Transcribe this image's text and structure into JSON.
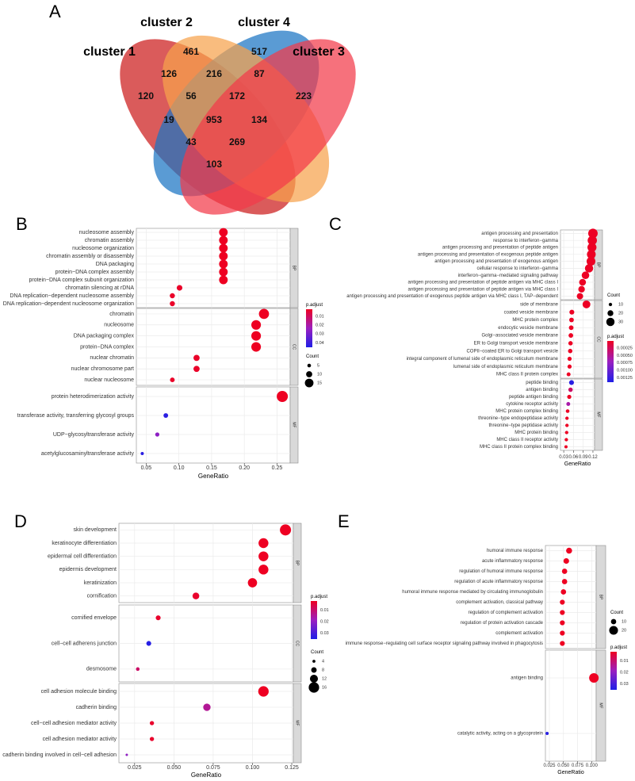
{
  "panel_letters": [
    "A",
    "B",
    "C",
    "D",
    "E"
  ],
  "colors": {
    "venn_c1": "#cc1c1c",
    "venn_c2": "#1a74c4",
    "venn_c4": "#f7a24c",
    "venn_c3": "#f23a4a",
    "strip": "#d9d9d9",
    "panel_bg": "#ffffff",
    "grid": "#ebebeb",
    "pad_high": "#ee0022",
    "pad_mid": "#9b1fc0",
    "pad_low": "#1f1fe6"
  },
  "chart_data": [
    {
      "panel": "A",
      "type": "venn",
      "sets": [
        "cluster 1",
        "cluster 2",
        "cluster 4",
        "cluster 3"
      ],
      "regions": [
        {
          "sets": [
            "cluster 1"
          ],
          "value": "120"
        },
        {
          "sets": [
            "cluster 2"
          ],
          "value": "461"
        },
        {
          "sets": [
            "cluster 4"
          ],
          "value": "517"
        },
        {
          "sets": [
            "cluster 3"
          ],
          "value": "223"
        },
        {
          "sets": [
            "cluster 1",
            "cluster 2"
          ],
          "value": "126"
        },
        {
          "sets": [
            "cluster 2",
            "cluster 4"
          ],
          "value": "216"
        },
        {
          "sets": [
            "cluster 4",
            "cluster 3"
          ],
          "value": "87"
        },
        {
          "sets": [
            "cluster 1",
            "cluster 2",
            "cluster 4"
          ],
          "value": "56"
        },
        {
          "sets": [
            "cluster 2",
            "cluster 4",
            "cluster 3"
          ],
          "value": "172"
        },
        {
          "sets": [
            "cluster 1",
            "cluster 4"
          ],
          "value": "19"
        },
        {
          "sets": [
            "cluster 1",
            "cluster 2",
            "cluster 4",
            "cluster 3"
          ],
          "value": "953"
        },
        {
          "sets": [
            "cluster 2",
            "cluster 3"
          ],
          "value": "134"
        },
        {
          "sets": [
            "cluster 1",
            "cluster 4",
            "cluster 3"
          ],
          "value": "43"
        },
        {
          "sets": [
            "cluster 1",
            "cluster 2",
            "cluster 3"
          ],
          "value": "269"
        },
        {
          "sets": [
            "cluster 1",
            "cluster 3"
          ],
          "value": "103"
        }
      ]
    },
    {
      "panel": "B",
      "type": "scatter",
      "xlabel": "GeneRatio",
      "xlim": [
        0.035,
        0.27
      ],
      "xticks": [
        0.05,
        0.1,
        0.15,
        0.2,
        0.25
      ],
      "xtick_labels": [
        "0.05",
        "0.10",
        "0.15",
        "0.20",
        "0.25"
      ],
      "facets": [
        {
          "label": "BP",
          "terms": [
            {
              "term": "nucleosome assembly",
              "x": 0.168,
              "count": 15,
              "p": 0.002
            },
            {
              "term": "chromatin assembly",
              "x": 0.168,
              "count": 15,
              "p": 0.002
            },
            {
              "term": "nucleosome organization",
              "x": 0.168,
              "count": 15,
              "p": 0.002
            },
            {
              "term": "chromatin assembly or disassembly",
              "x": 0.168,
              "count": 15,
              "p": 0.002
            },
            {
              "term": "DNA packaging",
              "x": 0.168,
              "count": 15,
              "p": 0.002
            },
            {
              "term": "protein−DNA complex assembly",
              "x": 0.168,
              "count": 15,
              "p": 0.002
            },
            {
              "term": "protein−DNA complex subunit organization",
              "x": 0.168,
              "count": 15,
              "p": 0.002
            },
            {
              "term": "chromatin silencing at rDNA",
              "x": 0.101,
              "count": 9,
              "p": 0.003
            },
            {
              "term": "DNA replication−dependent nucleosome assembly",
              "x": 0.09,
              "count": 8,
              "p": 0.003
            },
            {
              "term": "DNA replication−dependent nucleosome organization",
              "x": 0.09,
              "count": 8,
              "p": 0.003
            }
          ]
        },
        {
          "label": "CC",
          "terms": [
            {
              "term": "chromatin",
              "x": 0.23,
              "count": 18,
              "p": 0.002
            },
            {
              "term": "nucleosome",
              "x": 0.218,
              "count": 17,
              "p": 0.002
            },
            {
              "term": "DNA packaging complex",
              "x": 0.218,
              "count": 17,
              "p": 0.002
            },
            {
              "term": "protein−DNA complex",
              "x": 0.218,
              "count": 17,
              "p": 0.002
            },
            {
              "term": "nuclear chromatin",
              "x": 0.127,
              "count": 10,
              "p": 0.003
            },
            {
              "term": "nuclear chromosome part",
              "x": 0.127,
              "count": 10,
              "p": 0.003
            },
            {
              "term": "nuclear nucleosome",
              "x": 0.09,
              "count": 7,
              "p": 0.003
            }
          ]
        },
        {
          "label": "MF",
          "terms": [
            {
              "term": "protein heterodimerization activity",
              "x": 0.258,
              "count": 20,
              "p": 0.002
            },
            {
              "term": "transferase activity, transferring glycosyl groups",
              "x": 0.08,
              "count": 7,
              "p": 0.043
            },
            {
              "term": "UDP−glycosyltransferase activity",
              "x": 0.067,
              "count": 6,
              "p": 0.026
            },
            {
              "term": "acetylglucosaminyltransferase activity",
              "x": 0.044,
              "count": 4,
              "p": 0.043
            }
          ]
        }
      ],
      "color_legend": {
        "title": "p.adjust",
        "labels": [
          "0.01",
          "0.02",
          "0.03",
          "0.04"
        ],
        "values": [
          0.01,
          0.02,
          0.03,
          0.04
        ],
        "range": [
          0.002,
          0.045
        ]
      },
      "size_legend": {
        "title": "Count",
        "labels": [
          "5",
          "10",
          "15"
        ],
        "values": [
          5,
          10,
          15
        ]
      }
    },
    {
      "panel": "C",
      "type": "scatter",
      "xlabel": "GeneRatio",
      "xlim": [
        0.02,
        0.125
      ],
      "xticks": [
        0.03,
        0.06,
        0.09,
        0.12
      ],
      "xtick_labels": [
        "0.03",
        "0.06",
        "0.09",
        "0.12"
      ],
      "facets": [
        {
          "label": "BP",
          "terms": [
            {
              "term": "antigen processing and presentation",
              "x": 0.12,
              "count": 35,
              "p": 2e-05
            },
            {
              "term": "response to interferon−gamma",
              "x": 0.118,
              "count": 34,
              "p": 2e-05
            },
            {
              "term": "antigen processing and presentation of peptide antigen",
              "x": 0.117,
              "count": 33,
              "p": 2e-05
            },
            {
              "term": "antigen processing and presentation of exogenous peptide antigen",
              "x": 0.115,
              "count": 32,
              "p": 2e-05
            },
            {
              "term": "antigen processing and presentation of exogenous antigen",
              "x": 0.114,
              "count": 32,
              "p": 2e-05
            },
            {
              "term": "cellular response to interferon−gamma",
              "x": 0.108,
              "count": 30,
              "p": 2e-05
            },
            {
              "term": "interferon−gamma−mediated signaling pathway",
              "x": 0.097,
              "count": 27,
              "p": 2e-05
            },
            {
              "term": "antigen processing and presentation of peptide antigen via MHC class I",
              "x": 0.088,
              "count": 24,
              "p": 2e-05
            },
            {
              "term": "antigen processing and presentation of peptide antigen via MHC class I",
              "x": 0.085,
              "count": 23,
              "p": 2e-05
            },
            {
              "term": "antigen processing and presentation of exogenous peptide antigen via MHC class I, TAP−dependent",
              "x": 0.08,
              "count": 22,
              "p": 2e-05
            }
          ]
        },
        {
          "label": "CC",
          "terms": [
            {
              "term": "side of membrane",
              "x": 0.1,
              "count": 28,
              "p": 2e-05
            },
            {
              "term": "coated vesicle membrane",
              "x": 0.055,
              "count": 16,
              "p": 2e-05
            },
            {
              "term": "MHC protein complex",
              "x": 0.054,
              "count": 15,
              "p": 2e-05
            },
            {
              "term": "endocytic vesicle membrane",
              "x": 0.053,
              "count": 15,
              "p": 2e-05
            },
            {
              "term": "Golgi−associated vesicle membrane",
              "x": 0.052,
              "count": 15,
              "p": 2e-05
            },
            {
              "term": "ER to Golgi transport vesicle membrane",
              "x": 0.051,
              "count": 14,
              "p": 2e-05
            },
            {
              "term": "COPII−coated ER to Golgi transport vesicle",
              "x": 0.05,
              "count": 14,
              "p": 2e-05
            },
            {
              "term": "integral component of lumenal side of endoplasmic reticulum membrane",
              "x": 0.048,
              "count": 13,
              "p": 2e-05
            },
            {
              "term": "lumenal side of endoplasmic reticulum membrane",
              "x": 0.048,
              "count": 13,
              "p": 2e-05
            },
            {
              "term": "MHC class II protein complex",
              "x": 0.045,
              "count": 12,
              "p": 2e-05
            }
          ]
        },
        {
          "label": "MF",
          "terms": [
            {
              "term": "peptide binding",
              "x": 0.054,
              "count": 16,
              "p": 0.00135
            },
            {
              "term": "antigen binding",
              "x": 0.051,
              "count": 14,
              "p": 0.0003
            },
            {
              "term": "peptide antigen binding",
              "x": 0.047,
              "count": 13,
              "p": 2e-05
            },
            {
              "term": "cytokine receptor activity",
              "x": 0.044,
              "count": 12,
              "p": 0.0006
            },
            {
              "term": "MHC protein complex binding",
              "x": 0.042,
              "count": 11,
              "p": 2e-05
            },
            {
              "term": "threonine−type endopeptidase activity",
              "x": 0.04,
              "count": 10,
              "p": 2e-05
            },
            {
              "term": "threonine−type peptidase activity",
              "x": 0.04,
              "count": 10,
              "p": 2e-05
            },
            {
              "term": "MHC protein binding",
              "x": 0.039,
              "count": 10,
              "p": 2e-05
            },
            {
              "term": "MHC class II receptor activity",
              "x": 0.038,
              "count": 10,
              "p": 2e-05
            },
            {
              "term": "MHC class II protein complex binding",
              "x": 0.037,
              "count": 9,
              "p": 2e-05
            }
          ]
        }
      ],
      "color_legend": {
        "title": "p.adjust",
        "labels": [
          "0.00025",
          "0.00050",
          "0.00075",
          "0.00100",
          "0.00125"
        ],
        "values": [
          0.00025,
          0.0005,
          0.00075,
          0.001,
          0.00125
        ],
        "range": [
          1e-05,
          0.0014
        ]
      },
      "size_legend": {
        "title": "Count",
        "labels": [
          "10",
          "20",
          "30"
        ],
        "values": [
          10,
          20,
          30
        ]
      }
    },
    {
      "panel": "D",
      "type": "scatter",
      "xlabel": "GeneRatio",
      "xlim": [
        0.015,
        0.126
      ],
      "xticks": [
        0.025,
        0.05,
        0.075,
        0.1,
        0.125
      ],
      "xtick_labels": [
        "0.025",
        "0.050",
        "0.075",
        "0.100",
        "0.125"
      ],
      "facets": [
        {
          "label": "BP",
          "terms": [
            {
              "term": "skin development",
              "x": 0.121,
              "count": 17,
              "p": 0.002
            },
            {
              "term": "keratinocyte differentiation",
              "x": 0.107,
              "count": 15,
              "p": 0.002
            },
            {
              "term": "epidermal cell differentiation",
              "x": 0.107,
              "count": 15,
              "p": 0.002
            },
            {
              "term": "epidermis development",
              "x": 0.107,
              "count": 15,
              "p": 0.002
            },
            {
              "term": "keratinization",
              "x": 0.1,
              "count": 14,
              "p": 0.002
            },
            {
              "term": "cornification",
              "x": 0.064,
              "count": 10,
              "p": 0.003
            }
          ]
        },
        {
          "label": "CC",
          "terms": [
            {
              "term": "cornified envelope",
              "x": 0.04,
              "count": 7,
              "p": 0.003
            },
            {
              "term": "cell−cell adherens junction",
              "x": 0.034,
              "count": 7,
              "p": 0.034
            },
            {
              "term": "desmosome",
              "x": 0.027,
              "count": 5,
              "p": 0.009
            }
          ]
        },
        {
          "label": "MF",
          "terms": [
            {
              "term": "cell adhesion molecule binding",
              "x": 0.107,
              "count": 16,
              "p": 0.002
            },
            {
              "term": "cadherin binding",
              "x": 0.071,
              "count": 11,
              "p": 0.014
            },
            {
              "term": "cell−cell adhesion mediator activity",
              "x": 0.036,
              "count": 6,
              "p": 0.003
            },
            {
              "term": "cell adhesion mediator activity",
              "x": 0.036,
              "count": 6,
              "p": 0.003
            },
            {
              "term": "cadherin binding involved in cell−cell adhesion",
              "x": 0.02,
              "count": 3,
              "p": 0.02
            }
          ]
        }
      ],
      "color_legend": {
        "title": "p.adjust",
        "labels": [
          "0.01",
          "0.02",
          "0.03"
        ],
        "values": [
          0.01,
          0.02,
          0.03
        ],
        "range": [
          0.002,
          0.035
        ]
      },
      "size_legend": {
        "title": "Count",
        "labels": [
          "4",
          "8",
          "12",
          "16"
        ],
        "values": [
          4,
          8,
          12,
          16
        ]
      }
    },
    {
      "panel": "E",
      "type": "scatter",
      "xlabel": "GeneRatio",
      "xlim": [
        0.018,
        0.108
      ],
      "xticks": [
        0.025,
        0.05,
        0.075,
        0.1
      ],
      "xtick_labels": [
        "0.025",
        "0.050",
        "0.075",
        "0.100"
      ],
      "facets": [
        {
          "label": "BP",
          "terms": [
            {
              "term": "humoral immune response",
              "x": 0.06,
              "count": 12,
              "p": 0.002
            },
            {
              "term": "acute inflammatory response",
              "x": 0.055,
              "count": 11,
              "p": 0.002
            },
            {
              "term": "regulation of humoral immune response",
              "x": 0.052,
              "count": 10,
              "p": 0.002
            },
            {
              "term": "regulation of acute inflammatory response",
              "x": 0.052,
              "count": 10,
              "p": 0.002
            },
            {
              "term": "humoral immune response mediated by circulating immunoglobulin",
              "x": 0.05,
              "count": 10,
              "p": 0.002
            },
            {
              "term": "complement activation, classical pathway",
              "x": 0.048,
              "count": 9,
              "p": 0.002
            },
            {
              "term": "regulation of complement activation",
              "x": 0.048,
              "count": 9,
              "p": 0.002
            },
            {
              "term": "regulation of protein activation cascade",
              "x": 0.048,
              "count": 9,
              "p": 0.002
            },
            {
              "term": "complement activation",
              "x": 0.048,
              "count": 9,
              "p": 0.002
            },
            {
              "term": "immune response−regulating cell surface receptor signaling pathway involved in phagocytosis",
              "x": 0.048,
              "count": 9,
              "p": 0.002
            }
          ]
        },
        {
          "label": "MF",
          "terms": [
            {
              "term": "antigen binding",
              "x": 0.104,
              "count": 22,
              "p": 0.002
            },
            {
              "term": "catalytic activity, acting on a glycoprotein",
              "x": 0.021,
              "count": 4,
              "p": 0.034
            }
          ]
        }
      ],
      "color_legend": {
        "title": "p.adjust",
        "labels": [
          "0.01",
          "0.02",
          "0.03"
        ],
        "values": [
          0.01,
          0.02,
          0.03
        ],
        "range": [
          0.002,
          0.035
        ]
      },
      "size_legend": {
        "title": "Count",
        "labels": [
          "10",
          "20"
        ],
        "values": [
          10,
          20
        ]
      }
    }
  ]
}
